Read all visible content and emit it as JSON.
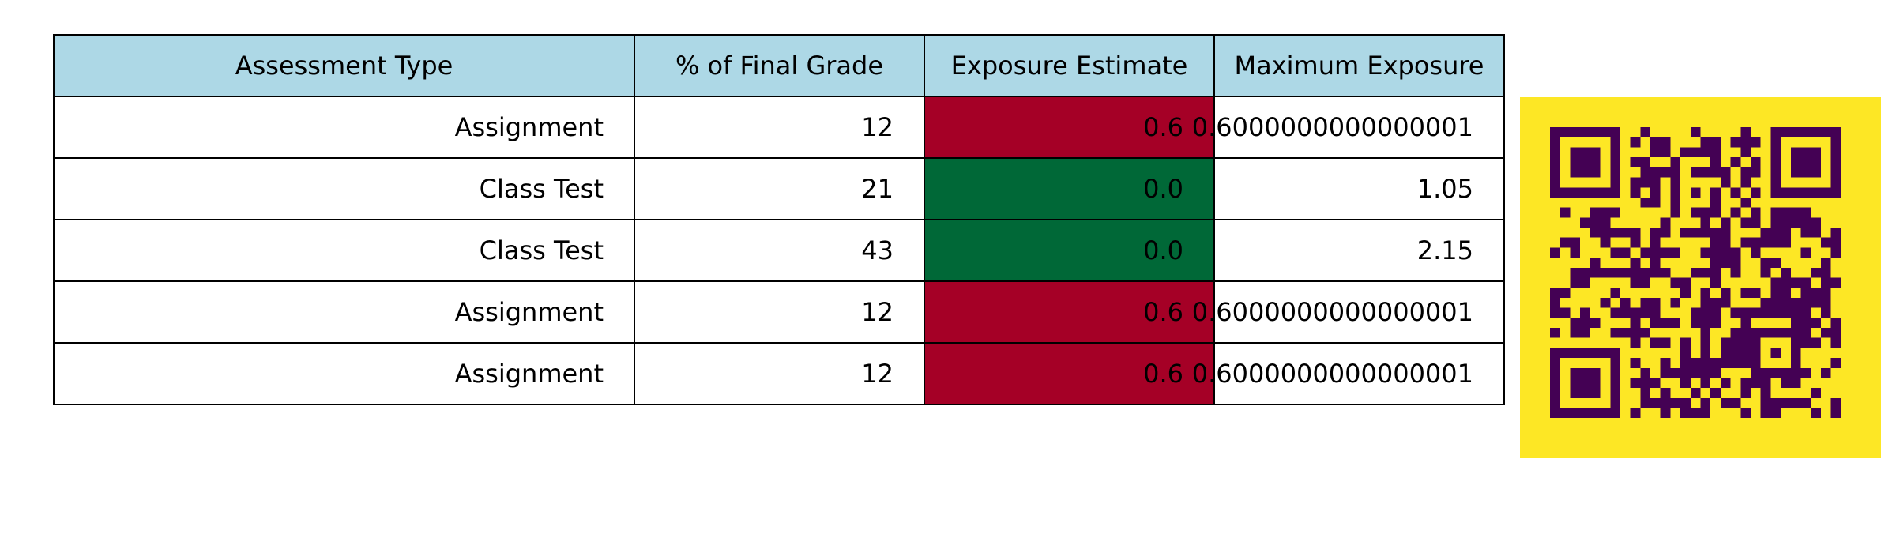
{
  "chart_data": {
    "type": "table",
    "columns": [
      "Assessment Type",
      "% of Final Grade",
      "Exposure Estimate",
      "Maximum Exposure"
    ],
    "rows": [
      {
        "type": "Assignment",
        "percent": "12",
        "exposure": "0.6",
        "max": "0.6000000000000001",
        "status": "high"
      },
      {
        "type": "Class Test",
        "percent": "21",
        "exposure": "0.0",
        "max": "1.05",
        "status": "low"
      },
      {
        "type": "Class Test",
        "percent": "43",
        "exposure": "0.0",
        "max": "2.15",
        "status": "low"
      },
      {
        "type": "Assignment",
        "percent": "12",
        "exposure": "0.6",
        "max": "0.6000000000000001",
        "status": "high"
      },
      {
        "type": "Assignment",
        "percent": "12",
        "exposure": "0.6",
        "max": "0.6000000000000001",
        "status": "high"
      }
    ]
  },
  "colors": {
    "header_bg": "#add8e6",
    "high": "#a50026",
    "low": "#006837",
    "qr_bg": "#fde725",
    "qr_fg": "#440154"
  }
}
